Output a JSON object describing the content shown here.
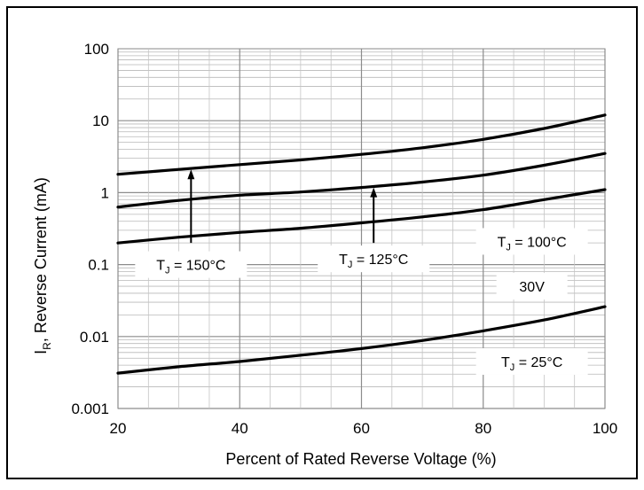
{
  "chart_data": {
    "type": "line",
    "xlabel": "Percent of Rated Reverse Voltage (%)",
    "ylabel_main": "I",
    "ylabel_sub": "R",
    "ylabel_rest": ", Reverse Current (mA)",
    "y_scale": "log",
    "xlim": [
      20,
      100
    ],
    "ylim": [
      0.001,
      100
    ],
    "grid": true,
    "x_ticks": [
      "20",
      "40",
      "60",
      "80",
      "100"
    ],
    "x_tick_values": [
      20,
      40,
      60,
      80,
      100
    ],
    "y_ticks": [
      "0.001",
      "0.01",
      "0.1",
      "1",
      "10",
      "100"
    ],
    "y_tick_values": [
      0.001,
      0.01,
      0.1,
      1,
      10,
      100
    ],
    "series": [
      {
        "name": "TJ = 150°C",
        "x": [
          20,
          30,
          40,
          50,
          60,
          70,
          80,
          90,
          100
        ],
        "y": [
          1.8,
          2.1,
          2.45,
          2.85,
          3.4,
          4.2,
          5.5,
          7.8,
          12.0
        ]
      },
      {
        "name": "TJ = 125°C",
        "x": [
          20,
          30,
          40,
          50,
          60,
          70,
          80,
          90,
          100
        ],
        "y": [
          0.63,
          0.78,
          0.92,
          1.02,
          1.18,
          1.4,
          1.75,
          2.4,
          3.5
        ]
      },
      {
        "name": "TJ = 100°C",
        "x": [
          20,
          30,
          40,
          50,
          60,
          70,
          80,
          90,
          100
        ],
        "y": [
          0.2,
          0.24,
          0.28,
          0.32,
          0.38,
          0.46,
          0.58,
          0.8,
          1.1
        ]
      },
      {
        "name": "TJ = 25°C",
        "x": [
          20,
          30,
          40,
          50,
          60,
          70,
          80,
          90,
          100
        ],
        "y": [
          0.0031,
          0.0038,
          0.0045,
          0.0055,
          0.0068,
          0.0088,
          0.012,
          0.017,
          0.026
        ]
      }
    ],
    "annotations": [
      {
        "label_main": "T",
        "label_sub": "J",
        "label_rest": " = 150°C",
        "x": 32,
        "y": 0.1
      },
      {
        "label_main": "T",
        "label_sub": "J",
        "label_rest": " = 125°C",
        "x": 62,
        "y": 0.12
      },
      {
        "label_main": "T",
        "label_sub": "J",
        "label_rest": " = 100°C",
        "x": 88,
        "y": 0.21
      },
      {
        "label_main": "30V",
        "label_sub": "",
        "label_rest": "",
        "x": 88,
        "y": 0.05
      },
      {
        "label_main": "T",
        "label_sub": "J",
        "label_rest": " = 25°C",
        "x": 88,
        "y": 0.0045
      }
    ],
    "arrows": [
      {
        "x": 32,
        "from_y": 0.2,
        "to_y": 2.1
      },
      {
        "x": 62,
        "from_y": 0.2,
        "to_y": 1.18
      }
    ]
  }
}
